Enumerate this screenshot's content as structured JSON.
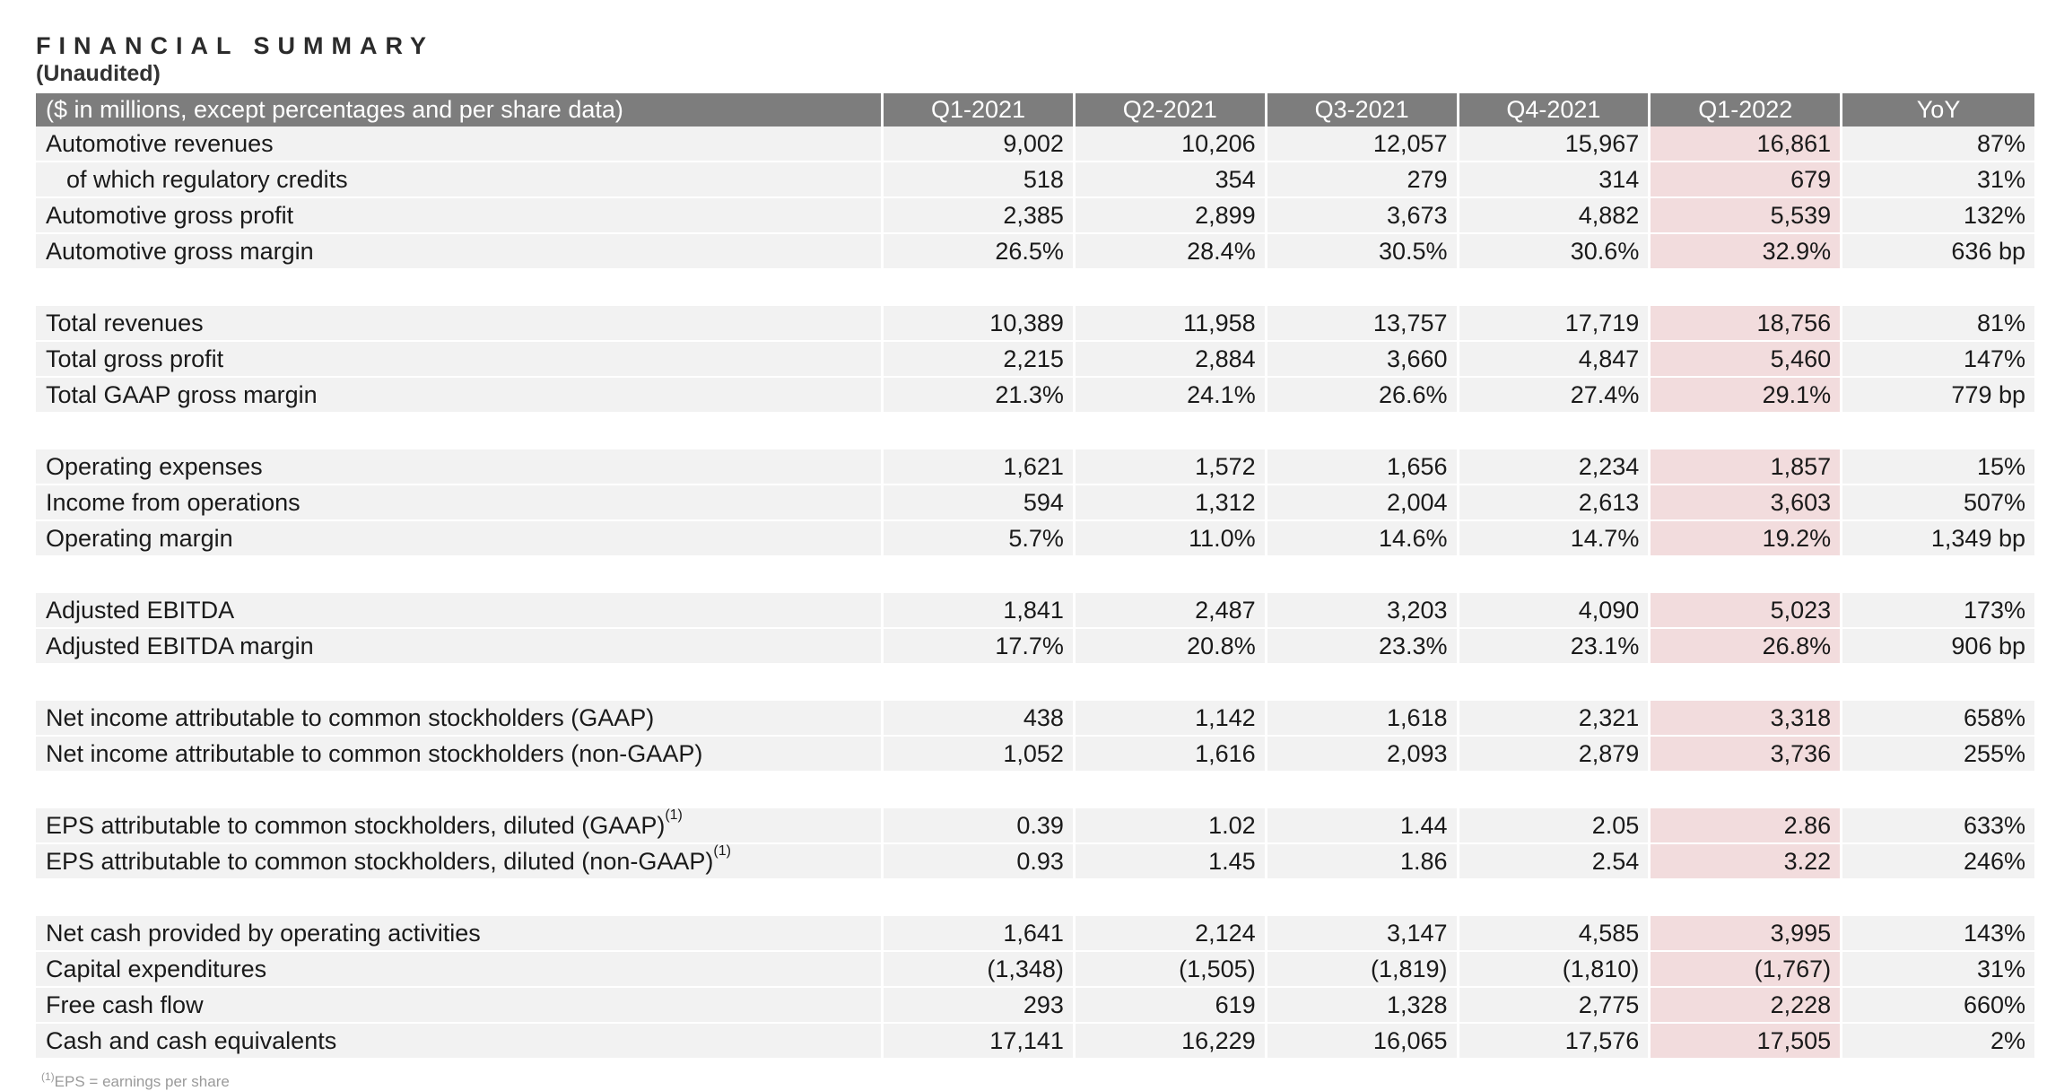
{
  "title": "FINANCIAL SUMMARY",
  "subtitle": "(Unaudited)",
  "header": {
    "label": "($ in millions, except percentages and per share data)",
    "columns": [
      "Q1-2021",
      "Q2-2021",
      "Q3-2021",
      "Q4-2021",
      "Q1-2022",
      "YoY"
    ]
  },
  "highlight_color": "#f2dcdd",
  "header_color": "#7d7d7d",
  "groups": [
    [
      {
        "label": "Automotive revenues",
        "values": [
          "9,002",
          "10,206",
          "12,057",
          "15,967",
          "16,861",
          "87%"
        ]
      },
      {
        "label": "of which regulatory credits",
        "values": [
          "518",
          "354",
          "279",
          "314",
          "679",
          "31%"
        ]
      },
      {
        "label": "Automotive gross profit",
        "values": [
          "2,385",
          "2,899",
          "3,673",
          "4,882",
          "5,539",
          "132%"
        ]
      },
      {
        "label": "Automotive gross margin",
        "values": [
          "26.5%",
          "28.4%",
          "30.5%",
          "30.6%",
          "32.9%",
          "636 bp"
        ]
      }
    ],
    [
      {
        "label": "Total revenues",
        "values": [
          "10,389",
          "11,958",
          "13,757",
          "17,719",
          "18,756",
          "81%"
        ]
      },
      {
        "label": "Total gross profit",
        "values": [
          "2,215",
          "2,884",
          "3,660",
          "4,847",
          "5,460",
          "147%"
        ]
      },
      {
        "label": "Total GAAP gross margin",
        "values": [
          "21.3%",
          "24.1%",
          "26.6%",
          "27.4%",
          "29.1%",
          "779 bp"
        ]
      }
    ],
    [
      {
        "label": "Operating expenses",
        "values": [
          "1,621",
          "1,572",
          "1,656",
          "2,234",
          "1,857",
          "15%"
        ]
      },
      {
        "label": "Income from operations",
        "values": [
          "594",
          "1,312",
          "2,004",
          "2,613",
          "3,603",
          "507%"
        ]
      },
      {
        "label": "Operating margin",
        "values": [
          "5.7%",
          "11.0%",
          "14.6%",
          "14.7%",
          "19.2%",
          "1,349 bp"
        ]
      }
    ],
    [
      {
        "label": "Adjusted EBITDA",
        "values": [
          "1,841",
          "2,487",
          "3,203",
          "4,090",
          "5,023",
          "173%"
        ]
      },
      {
        "label": "Adjusted EBITDA margin",
        "values": [
          "17.7%",
          "20.8%",
          "23.3%",
          "23.1%",
          "26.8%",
          "906 bp"
        ]
      }
    ],
    [
      {
        "label": "Net income attributable to common stockholders (GAAP)",
        "values": [
          "438",
          "1,142",
          "1,618",
          "2,321",
          "3,318",
          "658%"
        ]
      },
      {
        "label": "Net income attributable to common stockholders (non-GAAP)",
        "values": [
          "1,052",
          "1,616",
          "2,093",
          "2,879",
          "3,736",
          "255%"
        ]
      }
    ],
    [
      {
        "label": "EPS attributable to common stockholders, diluted (GAAP)",
        "sup": "(1)",
        "values": [
          "0.39",
          "1.02",
          "1.44",
          "2.05",
          "2.86",
          "633%"
        ]
      },
      {
        "label": "EPS attributable to common stockholders, diluted (non-GAAP)",
        "sup": "(1)",
        "values": [
          "0.93",
          "1.45",
          "1.86",
          "2.54",
          "3.22",
          "246%"
        ]
      }
    ],
    [
      {
        "label": "Net cash provided by operating activities",
        "values": [
          "1,641",
          "2,124",
          "3,147",
          "4,585",
          "3,995",
          "143%"
        ]
      },
      {
        "label": "Capital expenditures",
        "values": [
          "(1,348)",
          "(1,505)",
          "(1,819)",
          "(1,810)",
          "(1,767)",
          "31%"
        ]
      },
      {
        "label": "Free cash flow",
        "values": [
          "293",
          "619",
          "1,328",
          "2,775",
          "2,228",
          "660%"
        ]
      },
      {
        "label": "Cash and cash equivalents",
        "values": [
          "17,141",
          "16,229",
          "16,065",
          "17,576",
          "17,505",
          "2%"
        ]
      }
    ]
  ],
  "footnote": {
    "sup": "(1)",
    "text": "EPS = earnings per share"
  }
}
